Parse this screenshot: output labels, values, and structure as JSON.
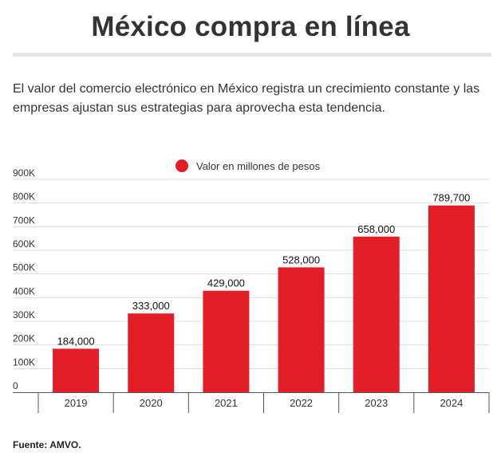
{
  "header": {
    "title": "México compra en línea",
    "subtitle": "El valor del comercio electrónico en México registra un crecimiento constante y las empresas ajustan sus estrategias para aprovecha esta tendencia."
  },
  "footer": {
    "source": "Fuente: AMVO."
  },
  "colors": {
    "bar": "#e41e26",
    "grid": "#dddddd",
    "axis": "#555555"
  },
  "chart_data": {
    "type": "bar",
    "categories": [
      "2019",
      "2020",
      "2021",
      "2022",
      "2023",
      "2024"
    ],
    "series": [
      {
        "name": "Valor en millones de pesos",
        "values": [
          184000,
          333000,
          429000,
          528000,
          658000,
          789700
        ]
      }
    ],
    "data_labels": [
      "184,000",
      "333,000",
      "429,000",
      "528,000",
      "658,000",
      "789,700"
    ],
    "yticks": [
      0,
      100000,
      200000,
      300000,
      400000,
      500000,
      600000,
      700000,
      800000,
      900000
    ],
    "ytick_labels": [
      "0",
      "100K",
      "200K",
      "300K",
      "400K",
      "500K",
      "600K",
      "700K",
      "800K",
      "900K"
    ],
    "ylim": [
      0,
      900000
    ],
    "legend_position": "top-center"
  }
}
